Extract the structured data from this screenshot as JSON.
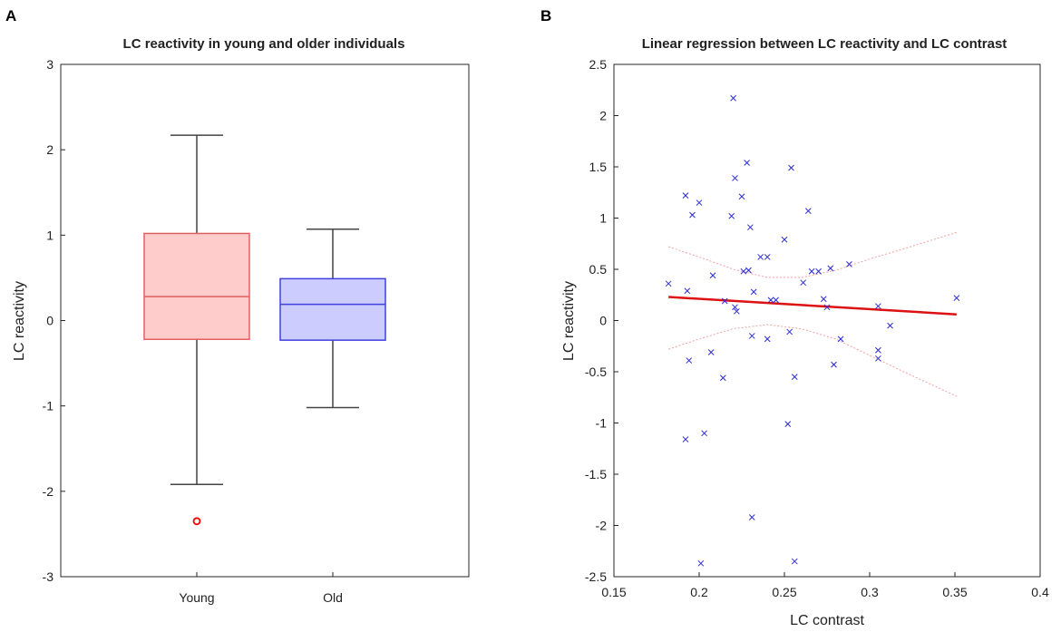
{
  "figure": {
    "panel_a_label": "A",
    "panel_b_label": "B"
  },
  "chart_data": [
    {
      "type": "box",
      "title": "LC reactivity in young and older individuals",
      "xlabel": "",
      "ylabel": "LC reactivity",
      "ylim": [
        -3,
        3
      ],
      "yticks": [
        -3,
        -2,
        -1,
        0,
        1,
        2,
        3
      ],
      "yticklabels": [
        "-3",
        "-2",
        "-1",
        "0",
        "1",
        "2",
        "3"
      ],
      "categories": [
        "Young",
        "Old"
      ],
      "boxes": [
        {
          "name": "Young",
          "whisker_low": -1.92,
          "q1": -0.22,
          "median": 0.28,
          "q3": 1.02,
          "whisker_high": 2.17,
          "outliers": [
            -2.35
          ],
          "fill": "#ffcccc",
          "edge": "#e06060",
          "median_color": "#e06060",
          "outlier_color": "#ff0000"
        },
        {
          "name": "Old",
          "whisker_low": -1.02,
          "q1": -0.23,
          "median": 0.19,
          "q3": 0.49,
          "whisker_high": 1.07,
          "outliers": [],
          "fill": "#ccccff",
          "edge": "#4040e0",
          "median_color": "#4040e0",
          "outlier_color": "#0000ff"
        }
      ]
    },
    {
      "type": "scatter",
      "title": "Linear regression between LC reactivity and LC contrast",
      "xlabel": "LC contrast",
      "ylabel": "LC reactivity",
      "xlim": [
        0.15,
        0.4
      ],
      "ylim": [
        -2.5,
        2.5
      ],
      "xticks": [
        0.15,
        0.2,
        0.25,
        0.3,
        0.35,
        0.4
      ],
      "xticklabels": [
        "0.15",
        "0.2",
        "0.25",
        "0.3",
        "0.35",
        "0.4"
      ],
      "yticks": [
        -2.5,
        -2,
        -1.5,
        -1,
        -0.5,
        0,
        0.5,
        1,
        1.5,
        2,
        2.5
      ],
      "yticklabels": [
        "-2.5",
        "-2",
        "-1.5",
        "-1",
        "-0.5",
        "0",
        "0.5",
        "1",
        "1.5",
        "2",
        "2.5"
      ],
      "marker_color": "#2b2bd6",
      "points": [
        [
          0.182,
          0.36
        ],
        [
          0.192,
          1.22
        ],
        [
          0.196,
          1.03
        ],
        [
          0.2,
          1.15
        ],
        [
          0.193,
          0.29
        ],
        [
          0.194,
          -0.39
        ],
        [
          0.192,
          -1.16
        ],
        [
          0.201,
          -2.37
        ],
        [
          0.203,
          -1.1
        ],
        [
          0.207,
          -0.31
        ],
        [
          0.208,
          0.44
        ],
        [
          0.214,
          -0.56
        ],
        [
          0.215,
          0.19
        ],
        [
          0.219,
          1.02
        ],
        [
          0.22,
          2.17
        ],
        [
          0.221,
          1.39
        ],
        [
          0.221,
          0.13
        ],
        [
          0.222,
          0.09
        ],
        [
          0.225,
          1.21
        ],
        [
          0.226,
          0.48
        ],
        [
          0.228,
          1.54
        ],
        [
          0.229,
          0.49
        ],
        [
          0.23,
          0.91
        ],
        [
          0.231,
          -0.15
        ],
        [
          0.231,
          -1.92
        ],
        [
          0.232,
          0.28
        ],
        [
          0.236,
          0.62
        ],
        [
          0.24,
          -0.18
        ],
        [
          0.24,
          0.62
        ],
        [
          0.242,
          0.2
        ],
        [
          0.245,
          0.2
        ],
        [
          0.25,
          0.79
        ],
        [
          0.252,
          -1.01
        ],
        [
          0.253,
          -0.11
        ],
        [
          0.254,
          1.49
        ],
        [
          0.256,
          -0.55
        ],
        [
          0.256,
          -2.35
        ],
        [
          0.261,
          0.37
        ],
        [
          0.264,
          1.07
        ],
        [
          0.266,
          0.48
        ],
        [
          0.27,
          0.48
        ],
        [
          0.273,
          0.21
        ],
        [
          0.275,
          0.13
        ],
        [
          0.277,
          0.51
        ],
        [
          0.279,
          -0.43
        ],
        [
          0.283,
          -0.18
        ],
        [
          0.288,
          0.55
        ],
        [
          0.305,
          0.14
        ],
        [
          0.305,
          -0.29
        ],
        [
          0.305,
          -0.37
        ],
        [
          0.312,
          -0.05
        ],
        [
          0.351,
          0.22
        ]
      ],
      "fit_line": {
        "x": [
          0.182,
          0.351
        ],
        "y": [
          0.23,
          0.06
        ],
        "color": "#dd1111"
      },
      "ci_upper": {
        "x": [
          0.182,
          0.2,
          0.22,
          0.24,
          0.26,
          0.28,
          0.3,
          0.32,
          0.351
        ],
        "y": [
          0.72,
          0.62,
          0.5,
          0.42,
          0.42,
          0.49,
          0.6,
          0.7,
          0.86
        ]
      },
      "ci_lower": {
        "x": [
          0.182,
          0.2,
          0.22,
          0.24,
          0.26,
          0.28,
          0.3,
          0.32,
          0.351
        ],
        "y": [
          -0.28,
          -0.18,
          -0.08,
          -0.04,
          -0.08,
          -0.18,
          -0.34,
          -0.5,
          -0.74
        ]
      },
      "ci_color": "#f0a0a0"
    }
  ]
}
